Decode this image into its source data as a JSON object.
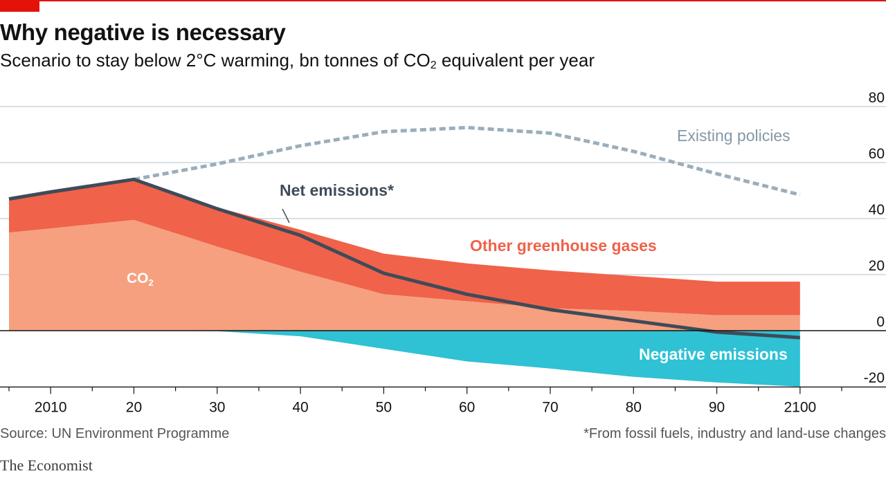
{
  "header": {
    "title": "Why negative is necessary",
    "subtitle_main": "Scenario to stay below 2°C warming, bn tonnes of CO",
    "subtitle_sub": "2",
    "subtitle_end": " equivalent per year"
  },
  "footer": {
    "source": "Source: UN Environment Programme",
    "footnote": "*From fossil fuels, industry and land-use changes",
    "brand": "The Economist"
  },
  "colors": {
    "co2": "#f6a07f",
    "other_ghg": "#f0624a",
    "negative": "#2fc1d4",
    "net": "#3f4b58",
    "existing": "#9aaebc",
    "other_label": "#f0624a",
    "net_label": "#3f4b58",
    "existing_label": "#8399a8"
  },
  "chart_data": {
    "type": "area",
    "x": [
      2005,
      2010,
      2020,
      2030,
      2040,
      2050,
      2060,
      2070,
      2080,
      2090,
      2100
    ],
    "xtick_values": [
      2010,
      2020,
      2030,
      2040,
      2050,
      2060,
      2070,
      2080,
      2090,
      2100
    ],
    "xtick_labels": [
      "2010",
      "20",
      "30",
      "40",
      "50",
      "60",
      "70",
      "80",
      "90",
      "2100"
    ],
    "ylim": [
      -20,
      80
    ],
    "yticks": [
      80,
      60,
      40,
      20,
      0,
      -20
    ],
    "ytick_labels": [
      "80",
      "60",
      "40",
      "20",
      "0",
      "-20"
    ],
    "y_axis_position": "right",
    "grid": true,
    "series": [
      {
        "name": "CO₂",
        "key": "co2",
        "values": [
          35,
          36.5,
          39.5,
          30,
          21,
          13,
          10.5,
          8,
          7,
          5.5,
          5.5
        ]
      },
      {
        "name": "Other greenhouse gases",
        "key": "other_top",
        "values": [
          47,
          49.5,
          54,
          44,
          36,
          27.5,
          24,
          21.5,
          19.5,
          17.5,
          17.5
        ]
      },
      {
        "name": "Negative emissions",
        "key": "negative",
        "values": [
          0,
          0,
          0,
          -0.2,
          -2,
          -6.5,
          -11,
          -13.5,
          -16.5,
          -18.5,
          -20
        ]
      },
      {
        "name": "Net emissions*",
        "key": "net",
        "values": [
          47,
          49.5,
          54,
          43.5,
          34,
          20.5,
          13,
          7.5,
          3.5,
          -0.5,
          -2.5
        ]
      },
      {
        "name": "Existing policies",
        "key": "existing",
        "x": [
          2020,
          2030,
          2040,
          2050,
          2060,
          2070,
          2080,
          2090,
          2100
        ],
        "values": [
          54,
          59.5,
          66,
          71,
          72.5,
          70.5,
          64,
          56,
          48.5
        ]
      }
    ],
    "labels": {
      "co2_main": "CO",
      "co2_sub": "2",
      "other": "Other greenhouse gases",
      "net": "Net emissions*",
      "negative": "Negative emissions",
      "existing": "Existing policies"
    }
  }
}
